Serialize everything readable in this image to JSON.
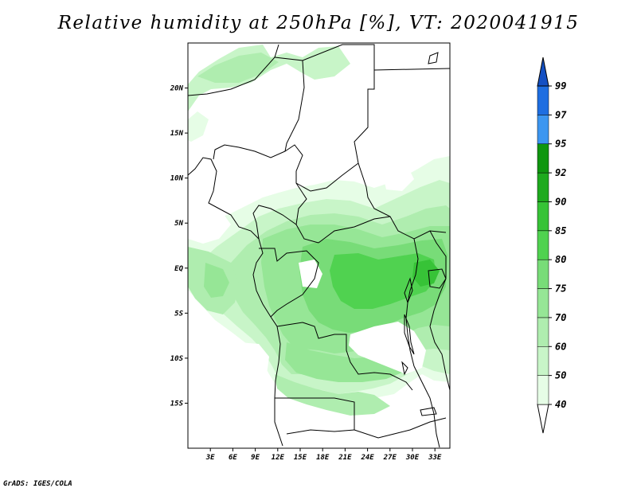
{
  "title": "Relative humidity at 250hPa [%], VT: 2020041915",
  "credit": "GrADS: IGES/COLA",
  "map": {
    "lon_range": [
      0,
      35
    ],
    "lat_range": [
      -20,
      25
    ],
    "lat_labels": [
      "20N",
      "15N",
      "10N",
      "5N",
      "EQ",
      "5S",
      "10S",
      "15S"
    ],
    "lat_values": [
      20,
      15,
      10,
      5,
      0,
      -5,
      -10,
      -15
    ],
    "lon_labels": [
      "3E",
      "6E",
      "9E",
      "12E",
      "15E",
      "18E",
      "21E",
      "24E",
      "27E",
      "30E",
      "33E"
    ],
    "lon_values": [
      3,
      6,
      9,
      12,
      15,
      18,
      21,
      24,
      27,
      30,
      33
    ]
  },
  "colorbar": {
    "levels": [
      "40",
      "50",
      "60",
      "70",
      "75",
      "80",
      "85",
      "90",
      "92",
      "95",
      "97",
      "99"
    ],
    "colors": [
      "#e6fde6",
      "#c8f5c8",
      "#afedaf",
      "#96e696",
      "#78dc78",
      "#50d250",
      "#37c337",
      "#1eaa1e",
      "#0f960f",
      "#3c96f0",
      "#1e6ee1",
      "#1450c3"
    ],
    "bottom_color": "#ffffff",
    "top_color": "#1450c3"
  }
}
